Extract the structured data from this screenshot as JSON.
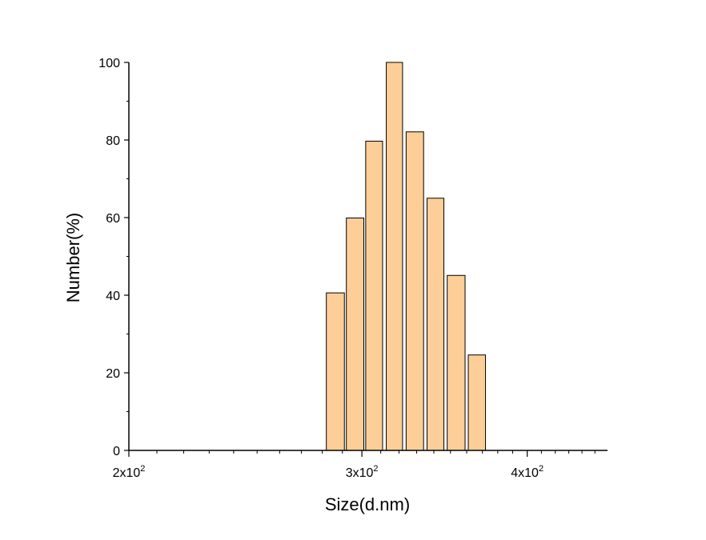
{
  "chart_data": {
    "type": "bar",
    "xlabel": "Size(d.nm)",
    "ylabel": "Number(%)",
    "x_scale": "log",
    "xlim": [
      200,
      460
    ],
    "ylim": [
      0,
      100
    ],
    "x_ticks": [
      {
        "value": 200,
        "mantissa": "2x10",
        "exponent": "2"
      },
      {
        "value": 300,
        "mantissa": "3x10",
        "exponent": "2"
      },
      {
        "value": 400,
        "mantissa": "4x10",
        "exponent": "2"
      }
    ],
    "y_ticks": [
      0,
      20,
      40,
      60,
      80,
      100
    ],
    "bins": [
      {
        "from": 282,
        "to": 291,
        "value": 40.6
      },
      {
        "from": 292,
        "to": 301,
        "value": 59.9
      },
      {
        "from": 302,
        "to": 311,
        "value": 79.7
      },
      {
        "from": 313,
        "to": 322,
        "value": 100
      },
      {
        "from": 324,
        "to": 334,
        "value": 82.1
      },
      {
        "from": 336,
        "to": 346,
        "value": 65.0
      },
      {
        "from": 348,
        "to": 359,
        "value": 45.1
      },
      {
        "from": 361,
        "to": 372,
        "value": 24.6
      }
    ],
    "bar_color": "#FDCE97",
    "bar_stroke": "#000000",
    "grid": false,
    "legend": "none"
  }
}
